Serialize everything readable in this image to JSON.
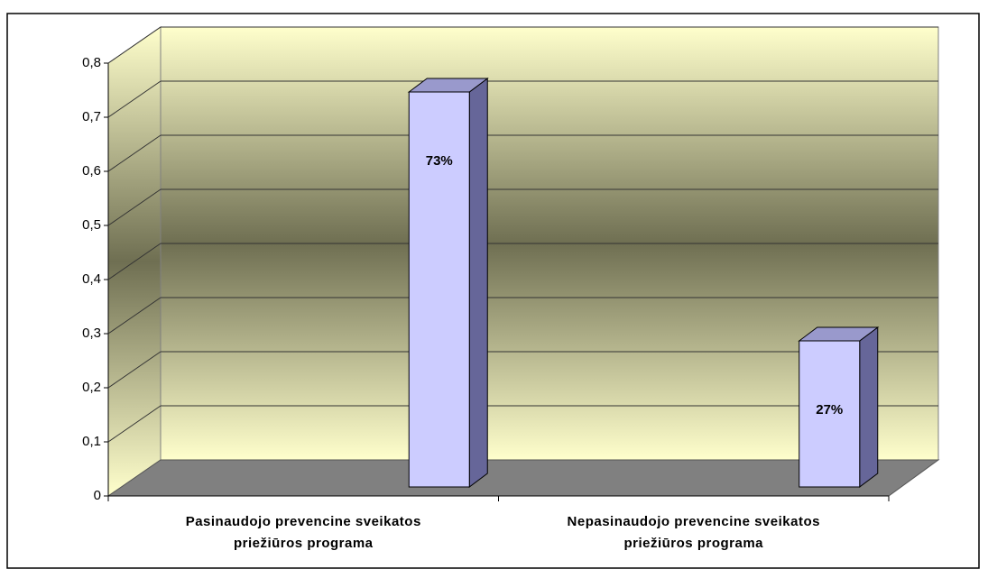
{
  "chart_data": {
    "type": "bar3d",
    "categories": [
      "Pasinaudojo prevencine sveikatos priežiūros programa",
      "Nepasinaudojo prevencine sveikatos priežiūros programa"
    ],
    "values": [
      0.73,
      0.27
    ],
    "value_labels": [
      "73%",
      "27%"
    ],
    "color": "#ccccff",
    "ylim": [
      0,
      0.8
    ],
    "yticks": [
      0,
      {
        "value": 0.1,
        "label": "0,1"
      },
      {
        "value": 0.2,
        "label": "0,2"
      },
      {
        "value": 0.3,
        "label": "0,3"
      },
      {
        "value": 0.4,
        "label": "0,4"
      },
      {
        "value": 0.5,
        "label": "0,5"
      },
      {
        "value": 0.6,
        "label": "0,6"
      },
      {
        "value": 0.7,
        "label": "0,7"
      },
      {
        "value": 0.8,
        "label": "0,8"
      }
    ],
    "grid": true
  }
}
